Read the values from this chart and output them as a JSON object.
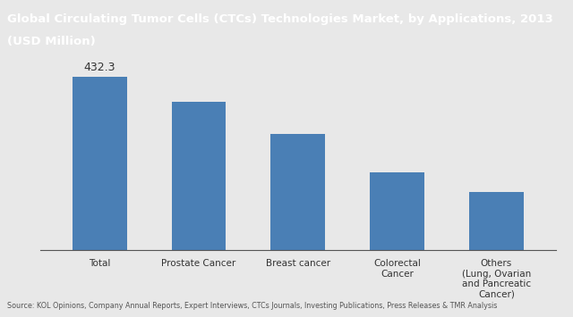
{
  "title_line1": "Global Circulating Tumor Cells (CTCs) Technologies Market, by Applications, 2013",
  "title_line2": "(USD Million)",
  "title_bg_color": "#1f5c6b",
  "title_text_color": "#ffffff",
  "bar_color": "#4a7fb5",
  "background_color": "#e8e8e8",
  "plot_bg_color": "#e8e8e8",
  "categories": [
    "Total",
    "Prostate Cancer",
    "Breast cancer",
    "Colorectal\nCancer",
    "Others\n(Lung, Ovarian\nand Pancreatic\nCancer)"
  ],
  "values": [
    432.3,
    370.0,
    290.0,
    195.0,
    145.0
  ],
  "bar_label": "432.3",
  "ylim": [
    0,
    500
  ],
  "footer_text": "Source: KOL Opinions, Company Annual Reports, Expert Interviews, CTCs Journals, Investing Publications, Press Releases & TMR Analysis",
  "footer_bg_color": "#d0d0d0",
  "footer_text_color": "#555555"
}
